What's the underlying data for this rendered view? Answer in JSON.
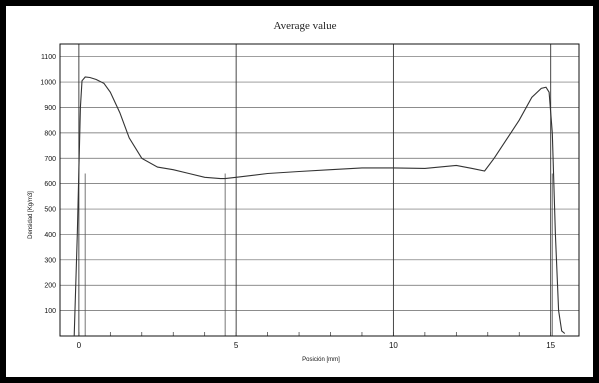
{
  "chart_data": {
    "type": "line",
    "title": "Average value",
    "xlabel": "Posición [mm]",
    "ylabel": "Densidad [Kg/m3]",
    "xlim": [
      -0.6,
      15.9
    ],
    "ylim": [
      0,
      1150
    ],
    "x_ticks": [
      0,
      5,
      10,
      15
    ],
    "y_ticks": [
      100,
      200,
      300,
      400,
      500,
      600,
      700,
      800,
      900,
      1000,
      1100
    ],
    "grid": true,
    "series": [
      {
        "x": [
          -0.15,
          -0.05,
          0.05,
          0.1,
          0.2,
          0.35,
          0.55,
          0.8,
          1.0,
          1.3,
          1.6,
          2.0,
          2.5,
          3.0,
          3.5,
          4.0,
          4.5,
          4.65,
          5.0,
          6.0,
          7.0,
          8.0,
          9.0,
          10.0,
          11.0,
          12.0,
          12.5,
          12.9,
          13.2,
          13.6,
          14.0,
          14.4,
          14.7,
          14.85,
          14.95,
          15.05,
          15.15,
          15.25,
          15.35,
          15.45
        ],
        "values": [
          0,
          400,
          900,
          1005,
          1020,
          1018,
          1010,
          995,
          960,
          880,
          780,
          700,
          665,
          655,
          640,
          625,
          620,
          620,
          625,
          640,
          648,
          655,
          662,
          662,
          660,
          672,
          660,
          650,
          700,
          775,
          850,
          940,
          975,
          980,
          960,
          800,
          400,
          100,
          20,
          10
        ]
      }
    ],
    "vertical_markers": [
      0.2,
      4.65,
      15.05
    ]
  }
}
